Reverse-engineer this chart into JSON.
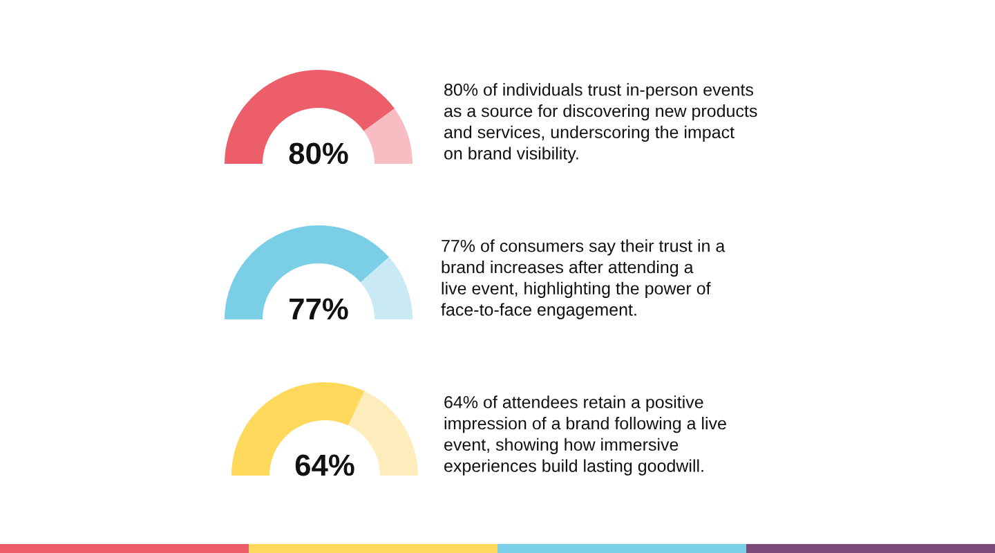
{
  "chart_data": [
    {
      "type": "donut",
      "categories": [
        null,
        null
      ],
      "values": [
        80,
        20
      ],
      "colors": [
        "#ec5e6a",
        "#f8bcc3"
      ],
      "value_labels": [
        "80%",
        null
      ],
      "annotations": [
        "80% of individuals trust in-person events\nas a source for discovering new products\nand services, underscoring the impact\non brand visibility."
      ]
    },
    {
      "type": "donut",
      "categories": [
        null,
        null
      ],
      "values": [
        77,
        23
      ],
      "colors": [
        "#7acfe7",
        "#c9eaf4"
      ],
      "value_labels": [
        "77%",
        null
      ],
      "annotations": [
        "77% of consumers say their trust in a\nbrand increases after attending a\nlive event, highlighting the power of\nface-to-face engagement."
      ]
    },
    {
      "type": "donut",
      "categories": [
        null,
        null
      ],
      "values": [
        64,
        36
      ],
      "colors": [
        "#fed95c",
        "#feedbc"
      ],
      "value_labels": [
        "64%",
        null
      ],
      "annotations": [
        "64% of attendees retain a positive\nimpression of a brand following a live\nevent, showing how immersive\nexperiences build lasting goodwill."
      ]
    }
  ]
}
